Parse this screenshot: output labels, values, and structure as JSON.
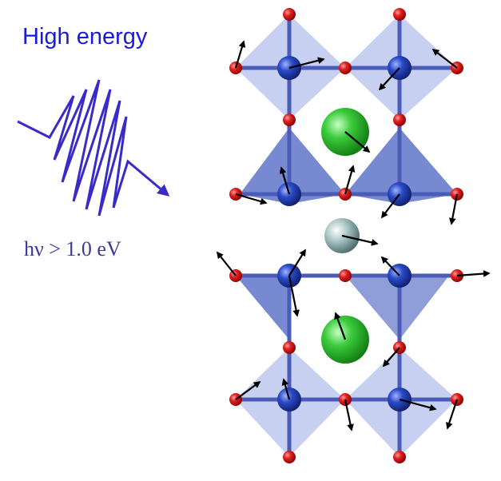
{
  "label": "High energy",
  "photon_energy": "hν > 1.0 eV"
}
